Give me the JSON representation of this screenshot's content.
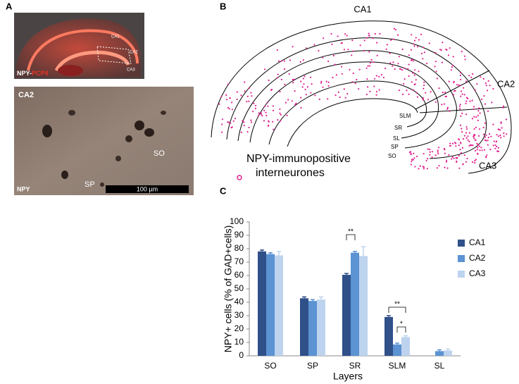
{
  "panels": {
    "A": {
      "label": "A",
      "top_image": {
        "regions": [
          "CA1",
          "CA2",
          "CA3"
        ],
        "stain": [
          "NPY-",
          "PCP4"
        ]
      },
      "bottom_image": {
        "labels": [
          "CA2",
          "SO",
          "SP",
          "NPY"
        ],
        "scale_bar": "100 µm"
      }
    },
    "B": {
      "label": "B",
      "regions": [
        "CA1",
        "CA2",
        "CA3"
      ],
      "layers": [
        "SLM",
        "SR",
        "SL",
        "SP",
        "SO"
      ],
      "legend": [
        "NPY-immunopositive",
        "interneurones"
      ]
    },
    "C": {
      "label": "C"
    }
  },
  "chart_data": {
    "type": "bar",
    "y_label": "NPY+ cells (% of GAD+cells)",
    "x_label": "Layers",
    "categories": [
      "SO",
      "SP",
      "SR",
      "SLM",
      "SL"
    ],
    "series": [
      {
        "name": "CA1",
        "color": "#2f5089",
        "values": [
          78,
          43,
          60.5,
          29,
          0
        ],
        "errors": [
          1,
          1,
          1,
          1,
          0
        ]
      },
      {
        "name": "CA2",
        "color": "#5b93d3",
        "values": [
          76,
          41,
          77,
          8.5,
          3.5
        ],
        "errors": [
          1,
          1,
          1,
          1,
          1
        ]
      },
      {
        "name": "CA3",
        "color": "#bdd3ee",
        "values": [
          75,
          42,
          74.5,
          14,
          4
        ],
        "errors": [
          3,
          2,
          7,
          1,
          1
        ]
      }
    ],
    "ylim": [
      0,
      100
    ],
    "yticks": [
      0,
      10,
      20,
      30,
      40,
      50,
      60,
      70,
      80,
      90,
      100
    ],
    "annotations": [
      "**",
      "**",
      "*"
    ],
    "legend": "right"
  }
}
